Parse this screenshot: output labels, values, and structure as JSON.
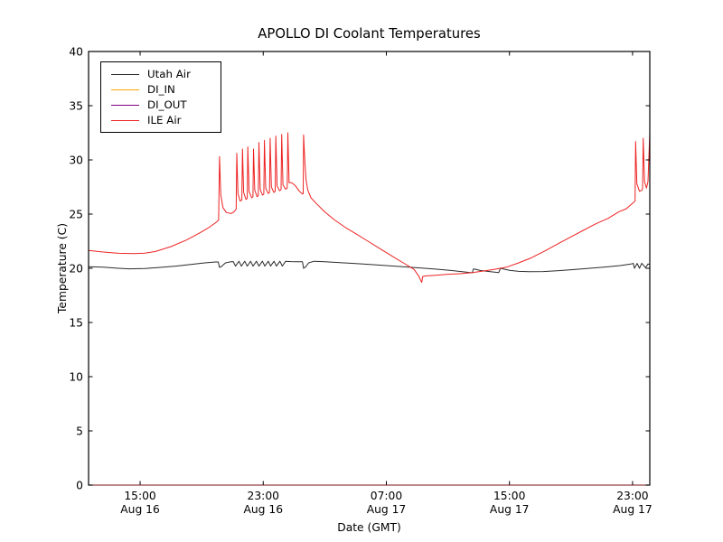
{
  "chart_data": {
    "type": "line",
    "title": "APOLLO DI Coolant Temperatures",
    "xlabel": "Date (GMT)",
    "ylabel": "Temperature (C)",
    "ylim": [
      0,
      40
    ],
    "yticks": [
      0,
      5,
      10,
      15,
      20,
      25,
      30,
      35,
      40
    ],
    "xlim_hours": [
      11.65,
      48.12
    ],
    "xticks": [
      {
        "hour": 15,
        "time": "15:00",
        "date": "Aug 16"
      },
      {
        "hour": 23,
        "time": "23:00",
        "date": "Aug 16"
      },
      {
        "hour": 31,
        "time": "07:00",
        "date": "Aug 17"
      },
      {
        "hour": 39,
        "time": "15:00",
        "date": "Aug 17"
      },
      {
        "hour": 47,
        "time": "23:00",
        "date": "Aug 17"
      }
    ],
    "grid": false,
    "legend_position": "upper left",
    "axis_color": "#000000",
    "bottom_spine_blend_color": "#5a3a3e",
    "series": [
      {
        "name": "Utah Air",
        "color": "#2b2b2b",
        "points": [
          [
            11.65,
            20.15
          ],
          [
            12.6,
            20.1
          ],
          [
            13.6,
            20.0
          ],
          [
            14.3,
            19.95
          ],
          [
            15.3,
            19.98
          ],
          [
            16.3,
            20.08
          ],
          [
            17.3,
            20.2
          ],
          [
            18.3,
            20.35
          ],
          [
            19.2,
            20.5
          ],
          [
            19.9,
            20.58
          ],
          [
            20.08,
            20.58
          ],
          [
            20.16,
            20.08
          ],
          [
            20.3,
            20.18
          ],
          [
            20.55,
            20.5
          ],
          [
            20.9,
            20.6
          ],
          [
            21.05,
            20.62
          ],
          [
            21.2,
            20.2
          ],
          [
            21.42,
            20.65
          ],
          [
            21.58,
            20.2
          ],
          [
            21.8,
            20.65
          ],
          [
            21.96,
            20.2
          ],
          [
            22.18,
            20.65
          ],
          [
            22.34,
            20.2
          ],
          [
            22.56,
            20.65
          ],
          [
            22.72,
            20.2
          ],
          [
            22.95,
            20.65
          ],
          [
            23.1,
            20.2
          ],
          [
            23.33,
            20.65
          ],
          [
            23.48,
            20.2
          ],
          [
            23.7,
            20.65
          ],
          [
            23.86,
            20.2
          ],
          [
            24.08,
            20.65
          ],
          [
            24.24,
            20.2
          ],
          [
            24.46,
            20.65
          ],
          [
            24.8,
            20.62
          ],
          [
            25.2,
            20.6
          ],
          [
            25.55,
            20.6
          ],
          [
            25.62,
            20.0
          ],
          [
            25.75,
            20.12
          ],
          [
            25.95,
            20.5
          ],
          [
            26.3,
            20.65
          ],
          [
            27.0,
            20.6
          ],
          [
            28.0,
            20.52
          ],
          [
            29.5,
            20.4
          ],
          [
            31.0,
            20.25
          ],
          [
            32.5,
            20.1
          ],
          [
            34.0,
            19.95
          ],
          [
            35.2,
            19.8
          ],
          [
            36.2,
            19.65
          ],
          [
            36.58,
            19.58
          ],
          [
            36.66,
            19.95
          ],
          [
            37.1,
            19.8
          ],
          [
            37.7,
            19.7
          ],
          [
            38.3,
            19.6
          ],
          [
            38.42,
            20.0
          ],
          [
            39.0,
            19.82
          ],
          [
            39.6,
            19.72
          ],
          [
            40.3,
            19.68
          ],
          [
            41.2,
            19.7
          ],
          [
            42.2,
            19.78
          ],
          [
            43.2,
            19.88
          ],
          [
            44.2,
            20.0
          ],
          [
            45.2,
            20.12
          ],
          [
            46.2,
            20.25
          ],
          [
            46.9,
            20.4
          ],
          [
            47.05,
            20.45
          ],
          [
            47.12,
            20.0
          ],
          [
            47.3,
            20.45
          ],
          [
            47.45,
            20.0
          ],
          [
            47.6,
            20.47
          ],
          [
            47.85,
            20.05
          ],
          [
            48.0,
            20.4
          ],
          [
            48.12,
            20.35
          ]
        ]
      },
      {
        "name": "DI_IN",
        "color": "#ffa500",
        "points": [
          [
            11.65,
            0
          ],
          [
            48.12,
            0
          ]
        ]
      },
      {
        "name": "DI_OUT",
        "color": "#800080",
        "points": [
          [
            11.65,
            0
          ],
          [
            48.12,
            0
          ]
        ]
      },
      {
        "name": "ILE Air",
        "color": "#ee2222",
        "points": [
          [
            11.65,
            21.65
          ],
          [
            12.6,
            21.5
          ],
          [
            13.6,
            21.38
          ],
          [
            14.6,
            21.35
          ],
          [
            15.3,
            21.4
          ],
          [
            16.0,
            21.55
          ],
          [
            17.0,
            22.0
          ],
          [
            18.0,
            22.6
          ],
          [
            18.8,
            23.2
          ],
          [
            19.4,
            23.7
          ],
          [
            19.9,
            24.2
          ],
          [
            20.1,
            24.45
          ],
          [
            20.16,
            30.3
          ],
          [
            20.24,
            26.8
          ],
          [
            20.38,
            25.6
          ],
          [
            20.6,
            25.15
          ],
          [
            20.9,
            25.05
          ],
          [
            21.1,
            25.2
          ],
          [
            21.24,
            25.45
          ],
          [
            21.28,
            30.6
          ],
          [
            21.36,
            26.9
          ],
          [
            21.5,
            26.2
          ],
          [
            21.61,
            26.3
          ],
          [
            21.65,
            31.0
          ],
          [
            21.73,
            27.0
          ],
          [
            21.88,
            26.35
          ],
          [
            21.96,
            26.45
          ],
          [
            22.0,
            31.2
          ],
          [
            22.08,
            27.1
          ],
          [
            22.25,
            26.5
          ],
          [
            22.33,
            26.6
          ],
          [
            22.37,
            31.0
          ],
          [
            22.45,
            27.2
          ],
          [
            22.6,
            26.6
          ],
          [
            22.68,
            26.7
          ],
          [
            22.72,
            31.6
          ],
          [
            22.8,
            27.3
          ],
          [
            22.95,
            26.75
          ],
          [
            23.04,
            26.85
          ],
          [
            23.08,
            31.8
          ],
          [
            23.16,
            27.4
          ],
          [
            23.32,
            26.9
          ],
          [
            23.41,
            27.0
          ],
          [
            23.45,
            32.0
          ],
          [
            23.53,
            27.5
          ],
          [
            23.69,
            27.0
          ],
          [
            23.78,
            27.1
          ],
          [
            23.82,
            32.2
          ],
          [
            23.9,
            27.6
          ],
          [
            24.06,
            27.15
          ],
          [
            24.16,
            27.25
          ],
          [
            24.2,
            32.35
          ],
          [
            24.28,
            27.7
          ],
          [
            24.45,
            27.3
          ],
          [
            24.56,
            27.4
          ],
          [
            24.6,
            32.5
          ],
          [
            24.68,
            27.9
          ],
          [
            24.85,
            27.9
          ],
          [
            25.1,
            27.6
          ],
          [
            25.35,
            27.1
          ],
          [
            25.55,
            26.85
          ],
          [
            25.6,
            26.9
          ],
          [
            25.62,
            32.3
          ],
          [
            25.7,
            30.0
          ],
          [
            25.78,
            28.2
          ],
          [
            25.9,
            27.2
          ],
          [
            26.1,
            26.5
          ],
          [
            26.5,
            25.9
          ],
          [
            27.0,
            25.2
          ],
          [
            27.6,
            24.5
          ],
          [
            28.3,
            23.8
          ],
          [
            29.0,
            23.2
          ],
          [
            29.8,
            22.5
          ],
          [
            30.6,
            21.8
          ],
          [
            31.4,
            21.1
          ],
          [
            32.1,
            20.5
          ],
          [
            32.8,
            19.9
          ],
          [
            33.1,
            19.3
          ],
          [
            33.25,
            18.85
          ],
          [
            33.3,
            18.7
          ],
          [
            33.37,
            19.25
          ],
          [
            33.6,
            19.3
          ],
          [
            34.2,
            19.35
          ],
          [
            35.0,
            19.45
          ],
          [
            35.8,
            19.5
          ],
          [
            36.6,
            19.6
          ],
          [
            37.3,
            19.75
          ],
          [
            38.0,
            19.9
          ],
          [
            38.8,
            20.1
          ],
          [
            39.6,
            20.5
          ],
          [
            40.4,
            20.95
          ],
          [
            41.3,
            21.6
          ],
          [
            42.2,
            22.3
          ],
          [
            43.0,
            22.9
          ],
          [
            43.8,
            23.5
          ],
          [
            44.6,
            24.1
          ],
          [
            45.4,
            24.6
          ],
          [
            46.1,
            25.2
          ],
          [
            46.6,
            25.5
          ],
          [
            47.0,
            26.0
          ],
          [
            47.12,
            26.15
          ],
          [
            47.16,
            26.2
          ],
          [
            47.2,
            31.7
          ],
          [
            47.28,
            27.8
          ],
          [
            47.45,
            27.1
          ],
          [
            47.6,
            27.2
          ],
          [
            47.65,
            27.3
          ],
          [
            47.69,
            32.0
          ],
          [
            47.78,
            28.0
          ],
          [
            47.9,
            27.4
          ],
          [
            48.0,
            28.0
          ],
          [
            48.12,
            32.5
          ]
        ]
      }
    ]
  }
}
